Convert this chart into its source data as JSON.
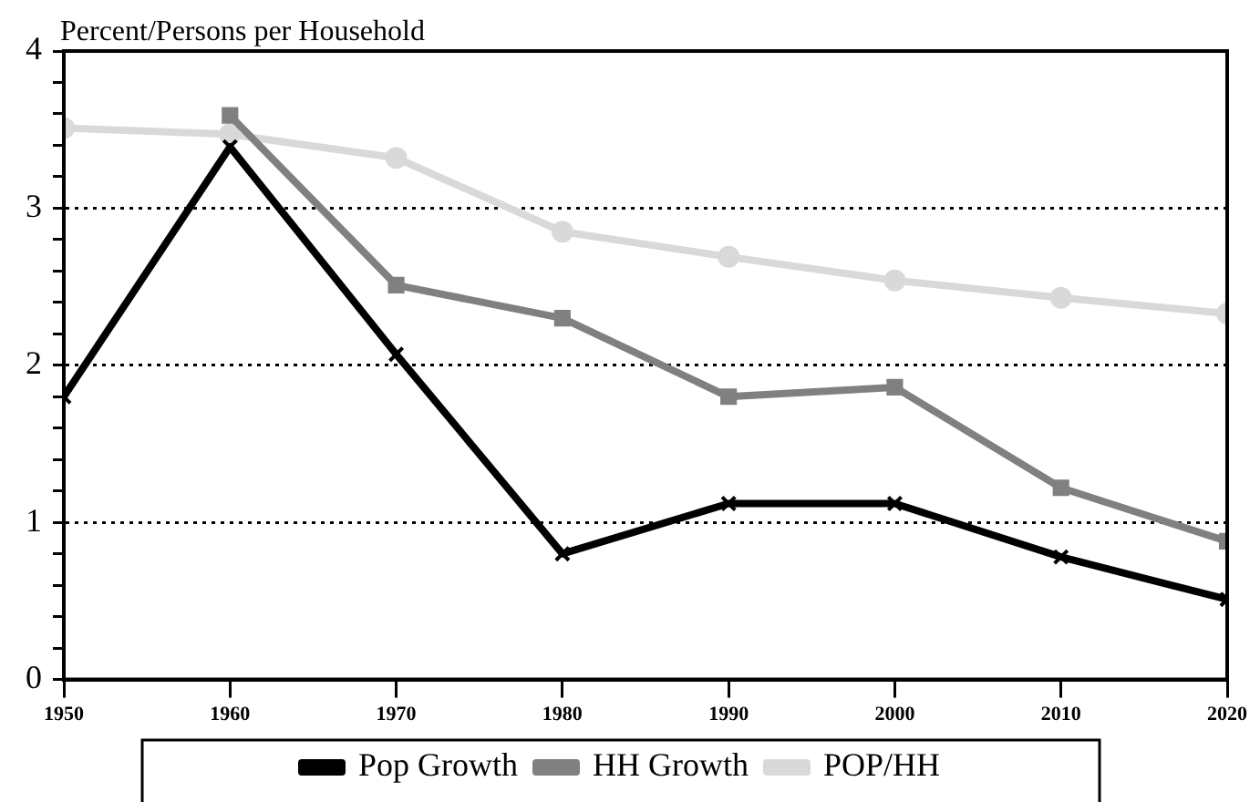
{
  "chart_data": {
    "type": "line",
    "ylabel": "Percent/Persons per Household",
    "x": [
      1950,
      1960,
      1970,
      1980,
      1990,
      2000,
      2010,
      2020
    ],
    "series": [
      {
        "name": "Pop Growth",
        "color": "#000000",
        "marker": "cross",
        "values": [
          1.8,
          3.39,
          2.07,
          0.8,
          1.12,
          1.12,
          0.78,
          0.51
        ]
      },
      {
        "name": "HH Growth",
        "color": "#808080",
        "marker": "square",
        "values": [
          null,
          3.59,
          2.51,
          2.3,
          1.8,
          1.86,
          1.22,
          0.88
        ]
      },
      {
        "name": "POP/HH",
        "color": "#d9d9d9",
        "marker": "circle",
        "values": [
          3.51,
          3.47,
          3.32,
          2.85,
          2.69,
          2.54,
          2.43,
          2.33
        ]
      }
    ],
    "xlim": [
      1950,
      2020
    ],
    "xticks": [
      1950,
      1960,
      1970,
      1980,
      1990,
      2000,
      2010,
      2020
    ],
    "ylim": [
      0,
      4
    ],
    "yticks": [
      0,
      {
        "value": 0.2,
        "label": null
      },
      {
        "value": 0.4,
        "label": null
      },
      {
        "value": 0.6,
        "label": null
      },
      {
        "value": 0.8,
        "label": null
      },
      1,
      {
        "value": 1.2,
        "label": null
      },
      {
        "value": 1.4,
        "label": null
      },
      {
        "value": 1.6,
        "label": null
      },
      {
        "value": 1.8,
        "label": null
      },
      2,
      {
        "value": 2.2,
        "label": null
      },
      {
        "value": 2.4,
        "label": null
      },
      {
        "value": 2.6,
        "label": null
      },
      {
        "value": 2.8,
        "label": null
      },
      3,
      {
        "value": 3.2,
        "label": null
      },
      {
        "value": 3.4,
        "label": null
      },
      {
        "value": 3.6,
        "label": null
      },
      {
        "value": 3.8,
        "label": null
      },
      4
    ],
    "grid": "y",
    "line_style": "solid",
    "legend": "bottom"
  }
}
